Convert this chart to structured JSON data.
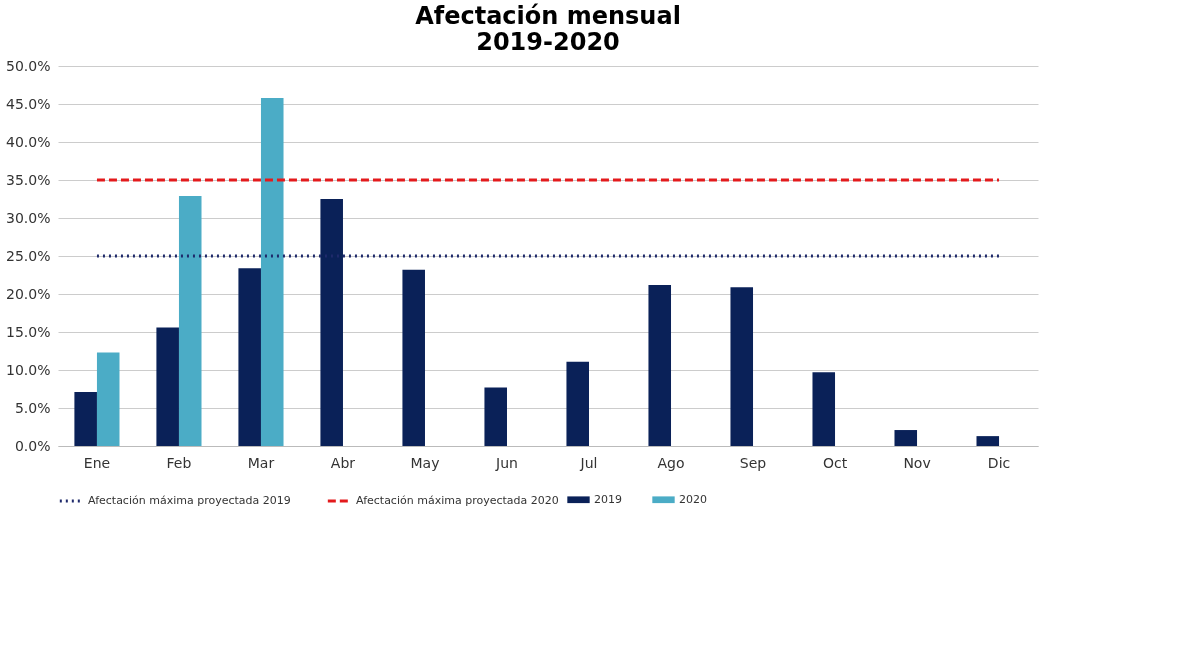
{
  "chart_data": {
    "type": "bar",
    "title": [
      "Afectación mensual",
      "2019-2020"
    ],
    "categories": [
      "Ene",
      "Feb",
      "Mar",
      "Abr",
      "May",
      "Jun",
      "Jul",
      "Ago",
      "Sep",
      "Oct",
      "Nov",
      "Dic"
    ],
    "series": [
      {
        "name": "2019",
        "color": "#0a2158",
        "values": [
          7.1,
          15.6,
          23.4,
          32.5,
          23.2,
          7.7,
          11.1,
          21.2,
          20.9,
          9.7,
          2.1,
          1.3
        ]
      },
      {
        "name": "2020",
        "color": "#4bacc6",
        "values": [
          12.3,
          32.9,
          45.8,
          null,
          null,
          null,
          null,
          null,
          null,
          null,
          null,
          null
        ]
      },
      {
        "name": "Afectación máxima proyectada 2019",
        "type": "line",
        "line_style": "dotted",
        "color": "#1f2a6b",
        "values": [
          25,
          25,
          25,
          25,
          25,
          25,
          25,
          25,
          25,
          25,
          25,
          25
        ]
      },
      {
        "name": "Afectación máxima proyectada 2020",
        "type": "line",
        "line_style": "dashed",
        "color": "#e31a1c",
        "values": [
          35,
          35,
          35,
          35,
          35,
          35,
          35,
          35,
          35,
          35,
          35,
          35
        ]
      }
    ],
    "ylim": [
      0,
      50
    ],
    "yticks": [
      {
        "value": 0,
        "label": "0.0%"
      },
      {
        "value": 5,
        "label": "5.0%"
      },
      {
        "value": 10,
        "label": "10.0%"
      },
      {
        "value": 15,
        "label": "15.0%"
      },
      {
        "value": 20,
        "label": "20.0%"
      },
      {
        "value": 25,
        "label": "25.0%"
      },
      {
        "value": 30,
        "label": "30.0%"
      },
      {
        "value": 35,
        "label": "35.0%"
      },
      {
        "value": 40,
        "label": "40.0%"
      },
      {
        "value": 45,
        "label": "45.0%"
      },
      {
        "value": 50,
        "label": "50.0%"
      }
    ],
    "grid": "y",
    "legend": "bottom"
  }
}
